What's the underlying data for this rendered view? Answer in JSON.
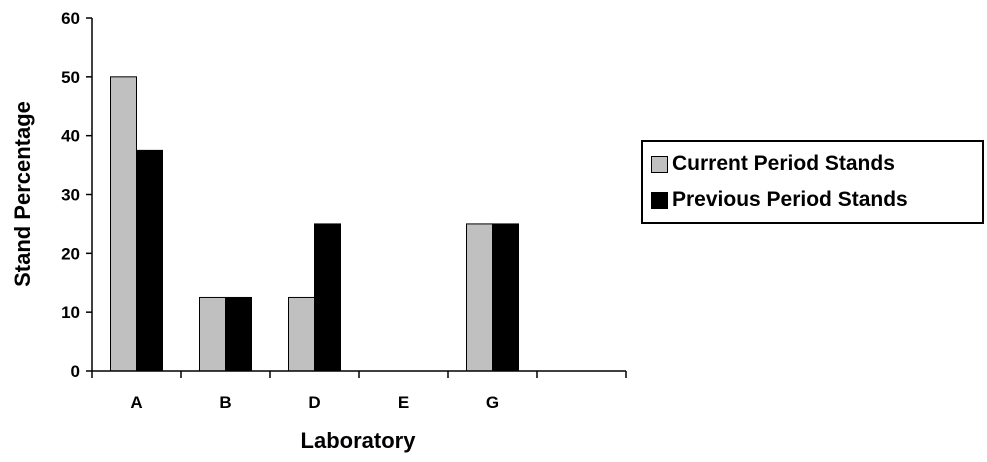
{
  "chart_data": {
    "type": "bar",
    "title": "",
    "xlabel": "Laboratory",
    "ylabel": "Stand Percentage",
    "categories": [
      "A",
      "B",
      "D",
      "E",
      "G",
      ""
    ],
    "ylim": [
      0,
      60
    ],
    "yticks": [
      0,
      10,
      20,
      30,
      40,
      50,
      60
    ],
    "grid": false,
    "legend_position": "right",
    "series": [
      {
        "name": "Current Period Stands",
        "color": "#c0c0c0",
        "values": [
          50,
          12.5,
          12.5,
          0,
          25,
          null
        ]
      },
      {
        "name": "Previous Period Stands",
        "color": "#000000",
        "values": [
          37.5,
          12.5,
          25,
          0,
          25,
          null
        ]
      }
    ]
  }
}
